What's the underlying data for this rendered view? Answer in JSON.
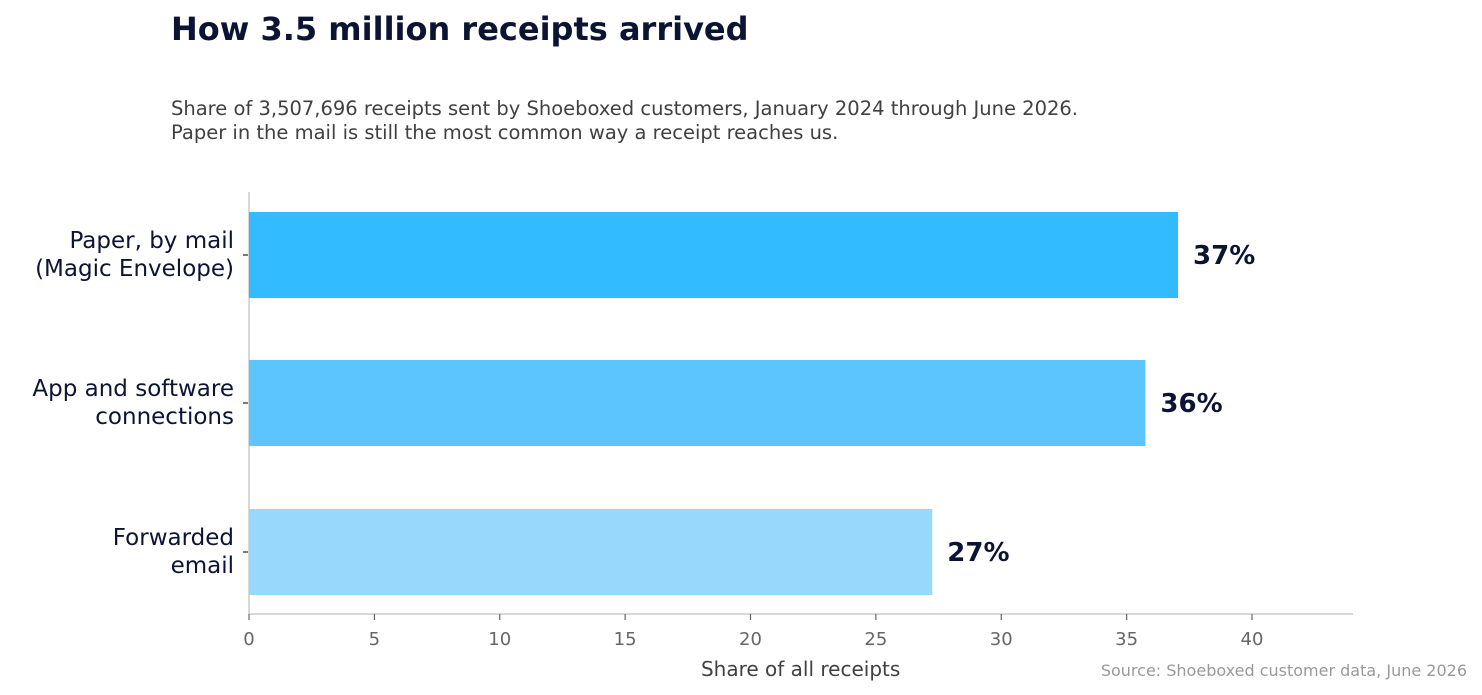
{
  "chart_data": {
    "type": "bar",
    "orientation": "horizontal",
    "title": "How 3.5 million receipts arrived",
    "subtitle_lines": [
      "Share of 3,507,696 receipts sent by Shoeboxed customers, January 2024 through June 2026.",
      "Paper in the mail is still the most common way a receipt reaches us."
    ],
    "categories": [
      [
        "Paper, by mail",
        "(Magic Envelope)"
      ],
      [
        "App and software",
        "connections"
      ],
      [
        "Forwarded",
        "email"
      ]
    ],
    "values": [
      37.05,
      35.75,
      27.25
    ],
    "value_labels": [
      "37%",
      "36%",
      "27%"
    ],
    "colors": [
      "#33bbff",
      "#5cc5fd",
      "#99d8fd"
    ],
    "xlabel": "Share of all receipts",
    "xlim": [
      0,
      44
    ],
    "xticks": [
      0,
      5,
      10,
      15,
      20,
      25,
      30,
      35,
      40
    ],
    "grid": false,
    "legend": "none"
  },
  "source": "Source: Shoeboxed customer data, June 2026"
}
